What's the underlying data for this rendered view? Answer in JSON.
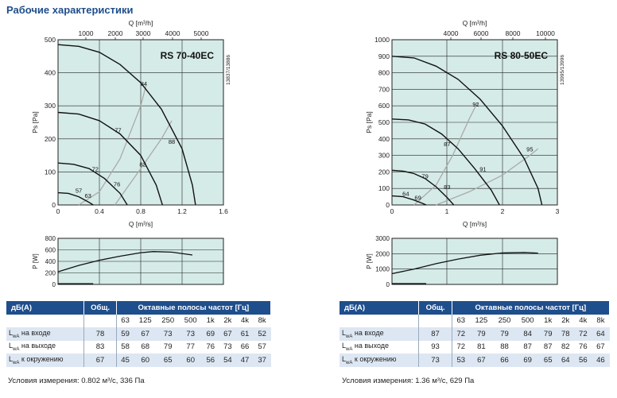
{
  "page_title": "Рабочие характеристики",
  "chart_data": [
    {
      "type": "line",
      "title": "RS 70-40EC",
      "side_code": "13837/13886",
      "xlabel": "Q [m³/s]",
      "x2label": "Q [m³/h]",
      "ylabel": "Ps [Pa]",
      "xlim": [
        0,
        1.6
      ],
      "ylim": [
        0,
        500
      ],
      "x2lim": [
        0,
        5760
      ],
      "xticks": [
        "0",
        "0.4",
        "0.8",
        "1.2",
        "1.6"
      ],
      "x2ticks": [
        "1000",
        "2000",
        "3000",
        "4000",
        "5000"
      ],
      "yticks": [
        "0",
        "100",
        "200",
        "300",
        "400",
        "500"
      ],
      "grid": true,
      "curves": [
        {
          "points": [
            [
              0,
              485
            ],
            [
              0.2,
              480
            ],
            [
              0.4,
              462
            ],
            [
              0.6,
              425
            ],
            [
              0.8,
              370
            ],
            [
              1.0,
              290
            ],
            [
              1.2,
              170
            ],
            [
              1.3,
              60
            ],
            [
              1.33,
              0
            ]
          ]
        },
        {
          "points": [
            [
              0,
              280
            ],
            [
              0.2,
              275
            ],
            [
              0.4,
              255
            ],
            [
              0.6,
              215
            ],
            [
              0.8,
              150
            ],
            [
              0.95,
              60
            ],
            [
              1.01,
              0
            ]
          ]
        },
        {
          "points": [
            [
              0,
              127
            ],
            [
              0.15,
              123
            ],
            [
              0.3,
              110
            ],
            [
              0.45,
              80
            ],
            [
              0.6,
              35
            ],
            [
              0.67,
              0
            ]
          ]
        },
        {
          "points": [
            [
              0,
              37
            ],
            [
              0.1,
              35
            ],
            [
              0.2,
              25
            ],
            [
              0.3,
              8
            ],
            [
              0.34,
              0
            ]
          ]
        }
      ],
      "efficiency_lines": [
        {
          "points": [
            [
              0.2,
              0
            ],
            [
              0.4,
              40
            ],
            [
              0.6,
              140
            ],
            [
              0.8,
              300
            ],
            [
              0.85,
              360
            ]
          ]
        },
        {
          "points": [
            [
              0.55,
              0
            ],
            [
              0.8,
              110
            ],
            [
              1.0,
              200
            ],
            [
              1.1,
              255
            ]
          ]
        }
      ],
      "labels": [
        {
          "text": "84",
          "x": 0.83,
          "y": 360
        },
        {
          "text": "77",
          "x": 0.58,
          "y": 220
        },
        {
          "text": "88",
          "x": 1.1,
          "y": 185
        },
        {
          "text": "72",
          "x": 0.36,
          "y": 102
        },
        {
          "text": "82",
          "x": 0.82,
          "y": 117
        },
        {
          "text": "76",
          "x": 0.57,
          "y": 57
        },
        {
          "text": "57",
          "x": 0.2,
          "y": 37
        },
        {
          "text": "63",
          "x": 0.29,
          "y": 22
        }
      ],
      "power": {
        "ylabel": "P [W]",
        "ylim": [
          0,
          800
        ],
        "yticks": [
          "0",
          "200",
          "400",
          "600",
          "800"
        ],
        "curve": [
          [
            0,
            220
          ],
          [
            0.2,
            330
          ],
          [
            0.4,
            420
          ],
          [
            0.6,
            490
          ],
          [
            0.8,
            550
          ],
          [
            0.92,
            570
          ],
          [
            1.1,
            560
          ],
          [
            1.3,
            510
          ]
        ],
        "low": [
          [
            0,
            10
          ],
          [
            0.34,
            10
          ]
        ]
      }
    },
    {
      "type": "line",
      "title": "RS 80-50EC",
      "side_code": "13995/13996",
      "xlabel": "Q [m³/s]",
      "x2label": "Q [m³/h]",
      "ylabel": "Ps [Pa]",
      "xlim": [
        0,
        3
      ],
      "ylim": [
        0,
        1000
      ],
      "x2lim": [
        0,
        10800
      ],
      "xticks": [
        "0",
        "1",
        "2",
        "3"
      ],
      "x2ticks": [
        "4000",
        "6000",
        "8000",
        "10000"
      ],
      "yticks": [
        "0",
        "100",
        "200",
        "300",
        "400",
        "500",
        "600",
        "700",
        "800",
        "900",
        "1000"
      ],
      "grid": true,
      "curves": [
        {
          "points": [
            [
              0,
              900
            ],
            [
              0.4,
              890
            ],
            [
              0.8,
              840
            ],
            [
              1.2,
              760
            ],
            [
              1.6,
              640
            ],
            [
              2.0,
              480
            ],
            [
              2.4,
              280
            ],
            [
              2.65,
              100
            ],
            [
              2.72,
              0
            ]
          ]
        },
        {
          "points": [
            [
              0,
              520
            ],
            [
              0.3,
              515
            ],
            [
              0.6,
              490
            ],
            [
              0.9,
              430
            ],
            [
              1.2,
              340
            ],
            [
              1.5,
              220
            ],
            [
              1.8,
              90
            ],
            [
              1.95,
              0
            ]
          ]
        },
        {
          "points": [
            [
              0,
              210
            ],
            [
              0.2,
              205
            ],
            [
              0.4,
              190
            ],
            [
              0.6,
              160
            ],
            [
              0.8,
              110
            ],
            [
              1.0,
              45
            ],
            [
              1.12,
              0
            ]
          ]
        },
        {
          "points": [
            [
              0,
              55
            ],
            [
              0.2,
              50
            ],
            [
              0.4,
              30
            ],
            [
              0.55,
              10
            ],
            [
              0.62,
              0
            ]
          ]
        }
      ],
      "efficiency_lines": [
        {
          "points": [
            [
              0.4,
              0
            ],
            [
              0.8,
              120
            ],
            [
              1.1,
              300
            ],
            [
              1.4,
              520
            ],
            [
              1.55,
              620
            ]
          ]
        },
        {
          "points": [
            [
              0.8,
              0
            ],
            [
              1.4,
              80
            ],
            [
              2.0,
              180
            ],
            [
              2.5,
              300
            ],
            [
              2.65,
              340
            ]
          ]
        }
      ],
      "labels": [
        {
          "text": "92",
          "x": 1.52,
          "y": 595
        },
        {
          "text": "87",
          "x": 1.0,
          "y": 355
        },
        {
          "text": "95",
          "x": 2.5,
          "y": 325
        },
        {
          "text": "79",
          "x": 0.6,
          "y": 160
        },
        {
          "text": "91",
          "x": 1.65,
          "y": 205
        },
        {
          "text": "83",
          "x": 1.0,
          "y": 95
        },
        {
          "text": "64",
          "x": 0.25,
          "y": 55
        },
        {
          "text": "69",
          "x": 0.47,
          "y": 32
        }
      ],
      "power": {
        "ylabel": "P [W]",
        "ylim": [
          0,
          3000
        ],
        "yticks": [
          "0",
          "1000",
          "2000",
          "3000"
        ],
        "curve": [
          [
            0,
            700
          ],
          [
            0.4,
            1000
          ],
          [
            0.8,
            1350
          ],
          [
            1.2,
            1650
          ],
          [
            1.6,
            1900
          ],
          [
            2.0,
            2050
          ],
          [
            2.4,
            2080
          ],
          [
            2.65,
            2040
          ]
        ],
        "low": [
          [
            0,
            40
          ],
          [
            0.62,
            40
          ]
        ]
      }
    }
  ],
  "tables": [
    {
      "header_label": "дБ(А)",
      "header_total": "Общ.",
      "header_bands": "Октавные полосы частот [Гц]",
      "bands": [
        "63",
        "125",
        "250",
        "500",
        "1k",
        "2k",
        "4k",
        "8k"
      ],
      "rows": [
        {
          "label": "на входе",
          "prefix": "L",
          "sub": "wA",
          "total": "78",
          "values": [
            "59",
            "67",
            "73",
            "73",
            "69",
            "67",
            "61",
            "52"
          ]
        },
        {
          "label": "на выходе",
          "prefix": "L",
          "sub": "wA",
          "total": "83",
          "values": [
            "58",
            "68",
            "79",
            "77",
            "76",
            "73",
            "66",
            "57"
          ]
        },
        {
          "label": "к окружению",
          "prefix": "L",
          "sub": "wA",
          "total": "67",
          "values": [
            "45",
            "60",
            "65",
            "60",
            "56",
            "54",
            "47",
            "37"
          ]
        }
      ],
      "conditions": "Условия измерения: 0.802 м³/с, 336 Па"
    },
    {
      "header_label": "дБ(А)",
      "header_total": "Общ.",
      "header_bands": "Октавные полосы частот [Гц]",
      "bands": [
        "63",
        "125",
        "250",
        "500",
        "1k",
        "2k",
        "4k",
        "8k"
      ],
      "rows": [
        {
          "label": "на входе",
          "prefix": "L",
          "sub": "wA",
          "total": "87",
          "values": [
            "72",
            "79",
            "79",
            "84",
            "79",
            "78",
            "72",
            "64"
          ]
        },
        {
          "label": "на выходе",
          "prefix": "L",
          "sub": "wA",
          "total": "93",
          "values": [
            "72",
            "81",
            "88",
            "87",
            "87",
            "82",
            "76",
            "67"
          ]
        },
        {
          "label": "к окружению",
          "prefix": "L",
          "sub": "wA",
          "total": "73",
          "values": [
            "53",
            "67",
            "66",
            "69",
            "65",
            "64",
            "56",
            "46"
          ]
        }
      ],
      "conditions": "Условия измерения: 1.36 м³/с,  629 Па"
    }
  ]
}
